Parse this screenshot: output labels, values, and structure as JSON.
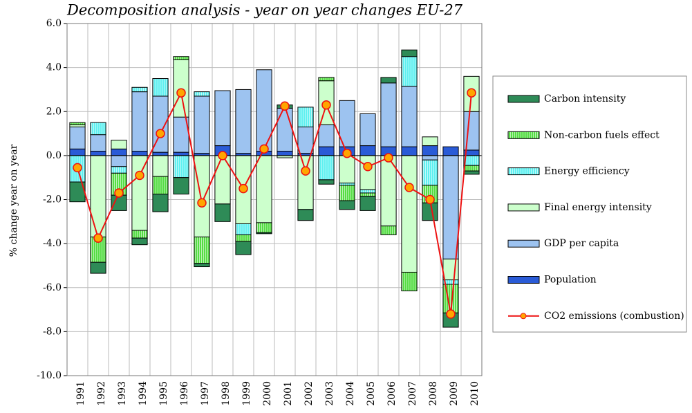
{
  "chart_data": {
    "type": "bar",
    "stacked": true,
    "title": "Decomposition analysis - year on year changes EU-27",
    "y_label": "% change year on year",
    "categories": [
      "1991",
      "1992",
      "1993",
      "1994",
      "1995",
      "1996",
      "1997",
      "1998",
      "1999",
      "2000",
      "2001",
      "2002",
      "2003",
      "2004",
      "2005",
      "2006",
      "2007",
      "2008",
      "2009",
      "2010"
    ],
    "series": [
      {
        "name": "Population",
        "color": "#2a5bd7",
        "values": [
          0.3,
          0.2,
          0.3,
          0.2,
          0.15,
          0.15,
          0.1,
          0.45,
          0.1,
          0.2,
          0.2,
          0.1,
          0.4,
          0.4,
          0.45,
          0.4,
          0.4,
          0.45,
          0.4,
          0.25
        ]
      },
      {
        "name": "GDP per capita",
        "color": "#9dc3f0",
        "values": [
          1.0,
          0.75,
          -0.5,
          2.7,
          2.55,
          1.6,
          2.6,
          2.5,
          2.9,
          3.7,
          1.95,
          1.2,
          1.0,
          2.1,
          1.45,
          2.9,
          2.75,
          -0.2,
          -4.7,
          1.75
        ]
      },
      {
        "name": "Final energy intensity",
        "color": "#ccffcc",
        "values": [
          0.1,
          -3.7,
          0.4,
          -3.4,
          -0.95,
          2.6,
          -3.7,
          -2.2,
          -3.1,
          -3.05,
          -0.1,
          -2.45,
          2.0,
          -1.25,
          -1.55,
          -3.2,
          -5.3,
          0.4,
          -0.95,
          1.6
        ]
      },
      {
        "name": "Energy efficiency",
        "color": "#5ff0f0",
        "hatched": true,
        "values": [
          -1.2,
          0.55,
          -0.3,
          0.2,
          0.8,
          -1.0,
          0.2,
          0,
          -0.5,
          0,
          0,
          0.9,
          -1.1,
          -0.1,
          -0.15,
          0,
          1.35,
          -1.15,
          -0.2,
          -0.45
        ]
      },
      {
        "name": "Non-carbon fuels effect",
        "color": "#55dd44",
        "hatched": true,
        "values": [
          0.1,
          -1.15,
          -1.0,
          -0.35,
          -0.8,
          0.15,
          -1.2,
          0,
          -0.3,
          -0.45,
          0,
          0,
          0.15,
          -0.7,
          -0.15,
          -0.4,
          -0.85,
          -0.8,
          -1.3,
          -0.25
        ]
      },
      {
        "name": "Carbon intensity",
        "color": "#2e8b57",
        "values": [
          -0.9,
          -0.5,
          -0.7,
          -0.3,
          -0.8,
          -0.75,
          -0.15,
          -0.8,
          -0.6,
          -0.05,
          0.15,
          -0.5,
          -0.2,
          -0.4,
          -0.65,
          0.25,
          0.3,
          -0.8,
          -0.65,
          -0.15
        ]
      }
    ],
    "line": {
      "name": "CO2 emissions (combustion)",
      "color": "#ee1111",
      "marker_color": "#ffa500",
      "values": [
        -0.55,
        -3.75,
        -1.7,
        -0.9,
        1.0,
        2.85,
        -2.15,
        0.0,
        -1.5,
        0.3,
        2.25,
        -0.7,
        2.3,
        0.1,
        -0.5,
        -0.1,
        -1.45,
        -2.0,
        -7.2,
        2.85
      ]
    },
    "ylim": [
      -10,
      6
    ],
    "yticks": [
      {
        "value": -10,
        "label": "-10.0"
      },
      {
        "value": -8,
        "label": "-8.0"
      },
      {
        "value": -6,
        "label": "-6.0"
      },
      {
        "value": -4,
        "label": "-4.0"
      },
      {
        "value": -2,
        "label": "-2.0"
      },
      {
        "value": 0,
        "label": "0.0"
      },
      {
        "value": 2,
        "label": "2.0"
      },
      {
        "value": 4,
        "label": "4.0"
      },
      {
        "value": 6,
        "label": "6.0"
      }
    ],
    "grid": true,
    "legend": "right"
  }
}
